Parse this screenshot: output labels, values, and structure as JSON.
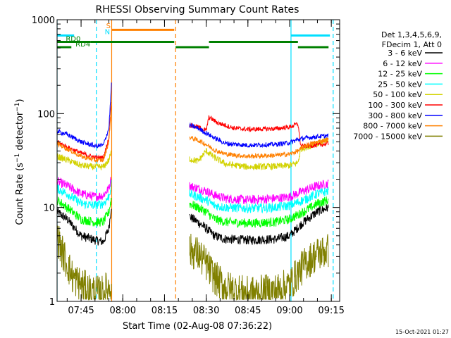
{
  "chart_data": {
    "type": "line",
    "title": "RHESSI Observing Summary Count Rates",
    "xlabel": "Start Time (02-Aug-08 07:36:22)",
    "ylabel": "Count Rate (s⁻¹ detector⁻¹)",
    "ylabel_main": "Count Rate (s",
    "ylabel_sup1": "−1",
    "ylabel_mid": " detector",
    "ylabel_sup2": "−1",
    "ylabel_end": ")",
    "footer_date": "15-Oct-2021 01:27",
    "yscale": "log",
    "ylim": [
      1,
      1000
    ],
    "xlim": [
      "07:36:22",
      "09:18:00"
    ],
    "y_ticks": [
      {
        "value": 1,
        "label": "1"
      },
      {
        "value": 10,
        "label": "10"
      },
      {
        "value": 100,
        "label": "100"
      },
      {
        "value": 1000,
        "label": "1000"
      }
    ],
    "x_ticks": [
      {
        "value": "07:45",
        "label": "07:45"
      },
      {
        "value": "08:00",
        "label": "08:00"
      },
      {
        "value": "08:15",
        "label": "08:15"
      },
      {
        "value": "08:30",
        "label": "08:30"
      },
      {
        "value": "08:45",
        "label": "08:45"
      },
      {
        "value": "09:00",
        "label": "09:00"
      },
      {
        "value": "09:15",
        "label": "09:15"
      }
    ],
    "legend_header": [
      "Det 1,3,4,5,6,9,",
      "FDecim 1, Att 0"
    ],
    "legend_placement": "right",
    "data_gap": [
      "07:56:00",
      "08:24:00"
    ],
    "series": [
      {
        "name": "3 - 6 keV",
        "color": "#000000",
        "profile": "low",
        "pts": [
          [
            "07:36:22",
            9
          ],
          [
            "07:40",
            7.5
          ],
          [
            "07:45",
            5
          ],
          [
            "07:50",
            4.5
          ],
          [
            "07:53",
            4.3
          ],
          [
            "07:55",
            6
          ],
          [
            "07:56",
            11
          ],
          [
            "08:24",
            8
          ],
          [
            "08:27",
            7
          ],
          [
            "08:30",
            6
          ],
          [
            "08:33",
            5
          ],
          [
            "08:37",
            4.6
          ],
          [
            "08:45",
            4.5
          ],
          [
            "08:55",
            4.6
          ],
          [
            "09:00",
            5
          ],
          [
            "09:05",
            7
          ],
          [
            "09:10",
            9
          ],
          [
            "09:14",
            10
          ]
        ]
      },
      {
        "name": "6 - 12 keV",
        "color": "#ff00ff",
        "profile": "low",
        "pts": [
          [
            "07:36:22",
            19
          ],
          [
            "07:40",
            17
          ],
          [
            "07:45",
            14
          ],
          [
            "07:50",
            13
          ],
          [
            "07:53",
            13.5
          ],
          [
            "07:55",
            16
          ],
          [
            "07:56",
            22
          ],
          [
            "08:24",
            17
          ],
          [
            "08:27",
            16
          ],
          [
            "08:30",
            15
          ],
          [
            "08:33",
            13.5
          ],
          [
            "08:37",
            12.5
          ],
          [
            "08:45",
            12
          ],
          [
            "08:55",
            12.5
          ],
          [
            "09:00",
            13
          ],
          [
            "09:05",
            15
          ],
          [
            "09:10",
            17
          ],
          [
            "09:14",
            18
          ]
        ]
      },
      {
        "name": "12 - 25 keV",
        "color": "#00ff00",
        "profile": "low",
        "pts": [
          [
            "07:36:22",
            12
          ],
          [
            "07:40",
            10
          ],
          [
            "07:45",
            7.5
          ],
          [
            "07:50",
            7
          ],
          [
            "07:53",
            7
          ],
          [
            "07:55",
            9
          ],
          [
            "07:56",
            13
          ],
          [
            "08:24",
            11
          ],
          [
            "08:27",
            10
          ],
          [
            "08:30",
            9
          ],
          [
            "08:33",
            7.5
          ],
          [
            "08:37",
            7
          ],
          [
            "08:45",
            6.8
          ],
          [
            "08:55",
            7
          ],
          [
            "09:00",
            7.5
          ],
          [
            "09:05",
            9
          ],
          [
            "09:10",
            11
          ],
          [
            "09:14",
            12
          ]
        ]
      },
      {
        "name": "25 - 50 keV",
        "color": "#00ffff",
        "profile": "low",
        "pts": [
          [
            "07:36:22",
            16
          ],
          [
            "07:40",
            14
          ],
          [
            "07:45",
            11
          ],
          [
            "07:50",
            10.5
          ],
          [
            "07:53",
            11
          ],
          [
            "07:55",
            13
          ],
          [
            "07:56",
            18
          ],
          [
            "08:24",
            14
          ],
          [
            "08:27",
            13
          ],
          [
            "08:30",
            12
          ],
          [
            "08:33",
            10.5
          ],
          [
            "08:37",
            10
          ],
          [
            "08:45",
            9.8
          ],
          [
            "08:55",
            10
          ],
          [
            "09:00",
            10.5
          ],
          [
            "09:05",
            12
          ],
          [
            "09:10",
            14
          ],
          [
            "09:14",
            15
          ]
        ]
      },
      {
        "name": "50 - 100 keV",
        "color": "#d2d200",
        "profile": "mid",
        "pts": [
          [
            "07:36:22",
            35
          ],
          [
            "07:40",
            32
          ],
          [
            "07:45",
            28
          ],
          [
            "07:50",
            27
          ],
          [
            "07:53",
            27
          ],
          [
            "07:55",
            32
          ],
          [
            "07:56",
            40
          ],
          [
            "08:24",
            33
          ],
          [
            "08:27",
            31
          ],
          [
            "08:30",
            40
          ],
          [
            "08:33",
            34
          ],
          [
            "08:37",
            29
          ],
          [
            "08:45",
            27
          ],
          [
            "08:55",
            27.5
          ],
          [
            "09:00",
            28
          ],
          [
            "09:03",
            30
          ],
          [
            "09:04",
            42
          ],
          [
            "09:06",
            44
          ],
          [
            "09:10",
            48
          ],
          [
            "09:14",
            52
          ]
        ]
      },
      {
        "name": "100 - 300 keV",
        "color": "#ff0000",
        "profile": "high",
        "pts": [
          [
            "07:36:22",
            50
          ],
          [
            "07:40",
            44
          ],
          [
            "07:45",
            38
          ],
          [
            "07:50",
            34
          ],
          [
            "07:53",
            34
          ],
          [
            "07:55",
            55
          ],
          [
            "07:56",
            150
          ],
          [
            "08:24",
            75
          ],
          [
            "08:27",
            72
          ],
          [
            "08:30",
            66
          ],
          [
            "08:31",
            92
          ],
          [
            "08:34",
            80
          ],
          [
            "08:40",
            70
          ],
          [
            "08:45",
            68
          ],
          [
            "08:55",
            69
          ],
          [
            "09:00",
            72
          ],
          [
            "09:03",
            78
          ],
          [
            "09:04",
            45
          ],
          [
            "09:10",
            46
          ],
          [
            "09:14",
            48
          ]
        ]
      },
      {
        "name": "300 - 800 keV",
        "color": "#0000ff",
        "profile": "high",
        "pts": [
          [
            "07:36:22",
            65
          ],
          [
            "07:40",
            60
          ],
          [
            "07:45",
            50
          ],
          [
            "07:50",
            45
          ],
          [
            "07:53",
            46
          ],
          [
            "07:55",
            70
          ],
          [
            "07:56",
            220
          ],
          [
            "08:24",
            75
          ],
          [
            "08:27",
            70
          ],
          [
            "08:30",
            62
          ],
          [
            "08:33",
            55
          ],
          [
            "08:37",
            48
          ],
          [
            "08:45",
            46
          ],
          [
            "08:55",
            47
          ],
          [
            "09:00",
            49
          ],
          [
            "09:03",
            53
          ],
          [
            "09:06",
            55
          ],
          [
            "09:10",
            57
          ],
          [
            "09:14",
            58
          ]
        ]
      },
      {
        "name": "800 - 7000 keV",
        "color": "#ff8000",
        "profile": "high",
        "pts": [
          [
            "07:36:22",
            48
          ],
          [
            "07:40",
            42
          ],
          [
            "07:45",
            35
          ],
          [
            "07:50",
            32
          ],
          [
            "07:53",
            32
          ],
          [
            "07:55",
            50
          ],
          [
            "07:56",
            140
          ],
          [
            "08:24",
            56
          ],
          [
            "08:27",
            52
          ],
          [
            "08:30",
            47
          ],
          [
            "08:33",
            41
          ],
          [
            "08:37",
            37
          ],
          [
            "08:45",
            35
          ],
          [
            "08:55",
            36
          ],
          [
            "09:00",
            37
          ],
          [
            "09:03",
            40
          ],
          [
            "09:06",
            46
          ],
          [
            "09:10",
            50
          ],
          [
            "09:14",
            53
          ]
        ]
      },
      {
        "name": "7000 - 15000 keV",
        "color": "#808000",
        "profile": "noisy",
        "pts": [
          [
            "07:36:22",
            5
          ],
          [
            "07:38",
            3.5
          ],
          [
            "07:40",
            2.5
          ],
          [
            "07:42",
            1.8
          ],
          [
            "07:45",
            1.5
          ],
          [
            "07:48",
            1.3
          ],
          [
            "07:52",
            1.2
          ],
          [
            "07:55",
            1.4
          ],
          [
            "07:56",
            1.6
          ],
          [
            "08:24",
            3.5
          ],
          [
            "08:27",
            3.2
          ],
          [
            "08:30",
            2.5
          ],
          [
            "08:33",
            1.8
          ],
          [
            "08:37",
            1.4
          ],
          [
            "08:45",
            1.2
          ],
          [
            "08:55",
            1.3
          ],
          [
            "09:00",
            1.5
          ],
          [
            "09:03",
            2
          ],
          [
            "09:06",
            2.6
          ],
          [
            "09:10",
            3.2
          ],
          [
            "09:14",
            3.5
          ]
        ]
      }
    ],
    "annotations": [
      {
        "id": "rd0",
        "label": "RD0",
        "color": "#008000"
      },
      {
        "id": "rd4",
        "label": "RD4",
        "color": "#008000"
      },
      {
        "id": "s",
        "label": "S",
        "color": "#ff8000"
      },
      {
        "id": "n",
        "label": "N",
        "color": "#00dfff"
      }
    ],
    "flag_bars": [
      {
        "color": "#008000",
        "y": 580,
        "segments": [
          [
            "07:36:22",
            "07:48:30"
          ],
          [
            "07:48:30",
            "08:18:30"
          ],
          [
            "08:31:00",
            "09:03:00"
          ]
        ]
      },
      {
        "color": "#008000",
        "y": 510,
        "segments": [
          [
            "07:36:22",
            "07:41:30"
          ],
          [
            "08:19:00",
            "08:31:00"
          ],
          [
            "09:03:00",
            "09:14:00"
          ]
        ]
      },
      {
        "color": "#ff8000",
        "y": 780,
        "segments": [
          [
            "07:56:00",
            "08:18:30"
          ]
        ]
      },
      {
        "color": "#00dfff",
        "y": 680,
        "segments": [
          [
            "07:36:22",
            "07:42:30"
          ],
          [
            "09:00:30",
            "09:14:30"
          ]
        ]
      }
    ],
    "vertical_markers": [
      {
        "time": "07:36:22",
        "color": "#00dfff",
        "style": "solid"
      },
      {
        "time": "07:50:30",
        "color": "#00dfff",
        "style": "dashed"
      },
      {
        "time": "07:56:00",
        "color": "#ff8000",
        "style": "solid"
      },
      {
        "time": "08:19:00",
        "color": "#ff8000",
        "style": "dashed"
      },
      {
        "time": "09:00:30",
        "color": "#00dfff",
        "style": "solid"
      },
      {
        "time": "09:15:40",
        "color": "#00dfff",
        "style": "dashed"
      }
    ]
  }
}
